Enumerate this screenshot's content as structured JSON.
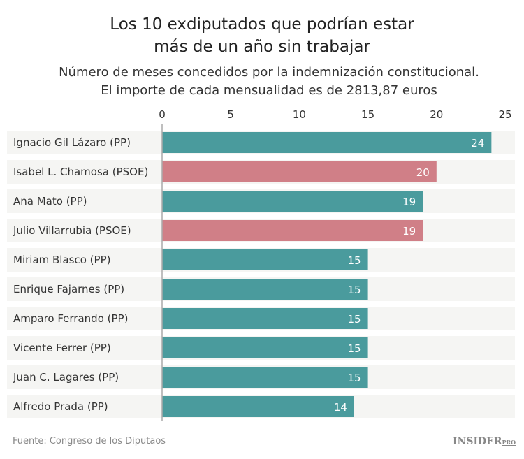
{
  "chart_data": {
    "type": "bar",
    "orientation": "horizontal",
    "title": "Los 10 exdiputados que podrían estar más de un año sin trabajar",
    "title_lines": [
      "Los 10 exdiputados que podrían estar",
      "más de un año sin trabajar"
    ],
    "subtitle_lines": [
      "Número de meses concedidos por la indemnización constitucional.",
      "El importe de cada mensualidad es de 2813,87 euros"
    ],
    "categories": [
      "Ignacio Gil Lázaro (PP)",
      "Isabel L. Chamosa (PSOE)",
      "Ana Mato (PP)",
      "Julio Villarrubia (PSOE)",
      "Miriam Blasco (PP)",
      "Enrique Fajarnes (PP)",
      "Amparo Ferrando (PP)",
      "Vicente Ferrer (PP)",
      "Juan C. Lagares (PP)",
      "Alfredo Prada (PP)"
    ],
    "values": [
      24,
      20,
      19,
      19,
      15,
      15,
      15,
      15,
      15,
      14
    ],
    "party": [
      "PP",
      "PSOE",
      "PP",
      "PSOE",
      "PP",
      "PP",
      "PP",
      "PP",
      "PP",
      "PP"
    ],
    "colors": {
      "PP": "#4a9b9d",
      "PSOE": "#d07f87"
    },
    "xlim": [
      0,
      25
    ],
    "xticks": [
      0,
      5,
      10,
      15,
      20,
      25
    ],
    "axis_position": "top",
    "grid": false
  },
  "footer": {
    "source": "Fuente: Congreso de los Diputaos",
    "logo": "INSIDER",
    "logo_suffix": "PRO"
  }
}
